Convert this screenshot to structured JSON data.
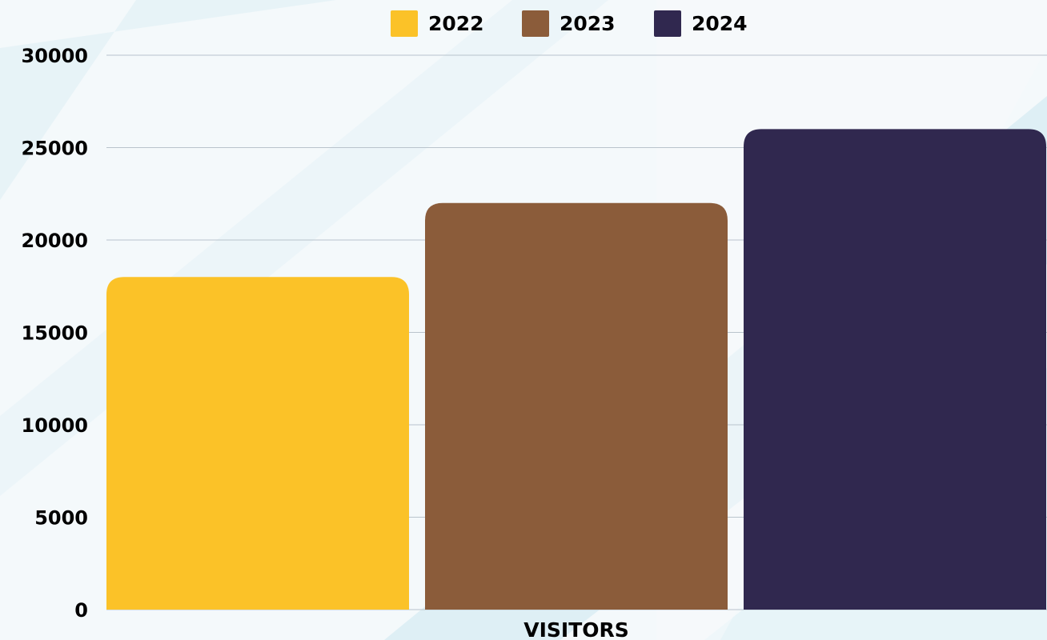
{
  "chart_data": {
    "type": "bar",
    "categories": [
      "VISITORS"
    ],
    "series": [
      {
        "name": "2022",
        "values": [
          18000
        ],
        "color": "#fbc228"
      },
      {
        "name": "2023",
        "values": [
          22000
        ],
        "color": "#8b5c3a"
      },
      {
        "name": "2024",
        "values": [
          26000
        ],
        "color": "#30284f"
      }
    ],
    "title": "",
    "xlabel": "",
    "ylabel": "",
    "ylim": [
      0,
      30000
    ],
    "yticks": [
      "0",
      "5000",
      "10000",
      "15000",
      "20000",
      "25000",
      "30000"
    ],
    "grid": true,
    "legend_position": "top-center"
  }
}
